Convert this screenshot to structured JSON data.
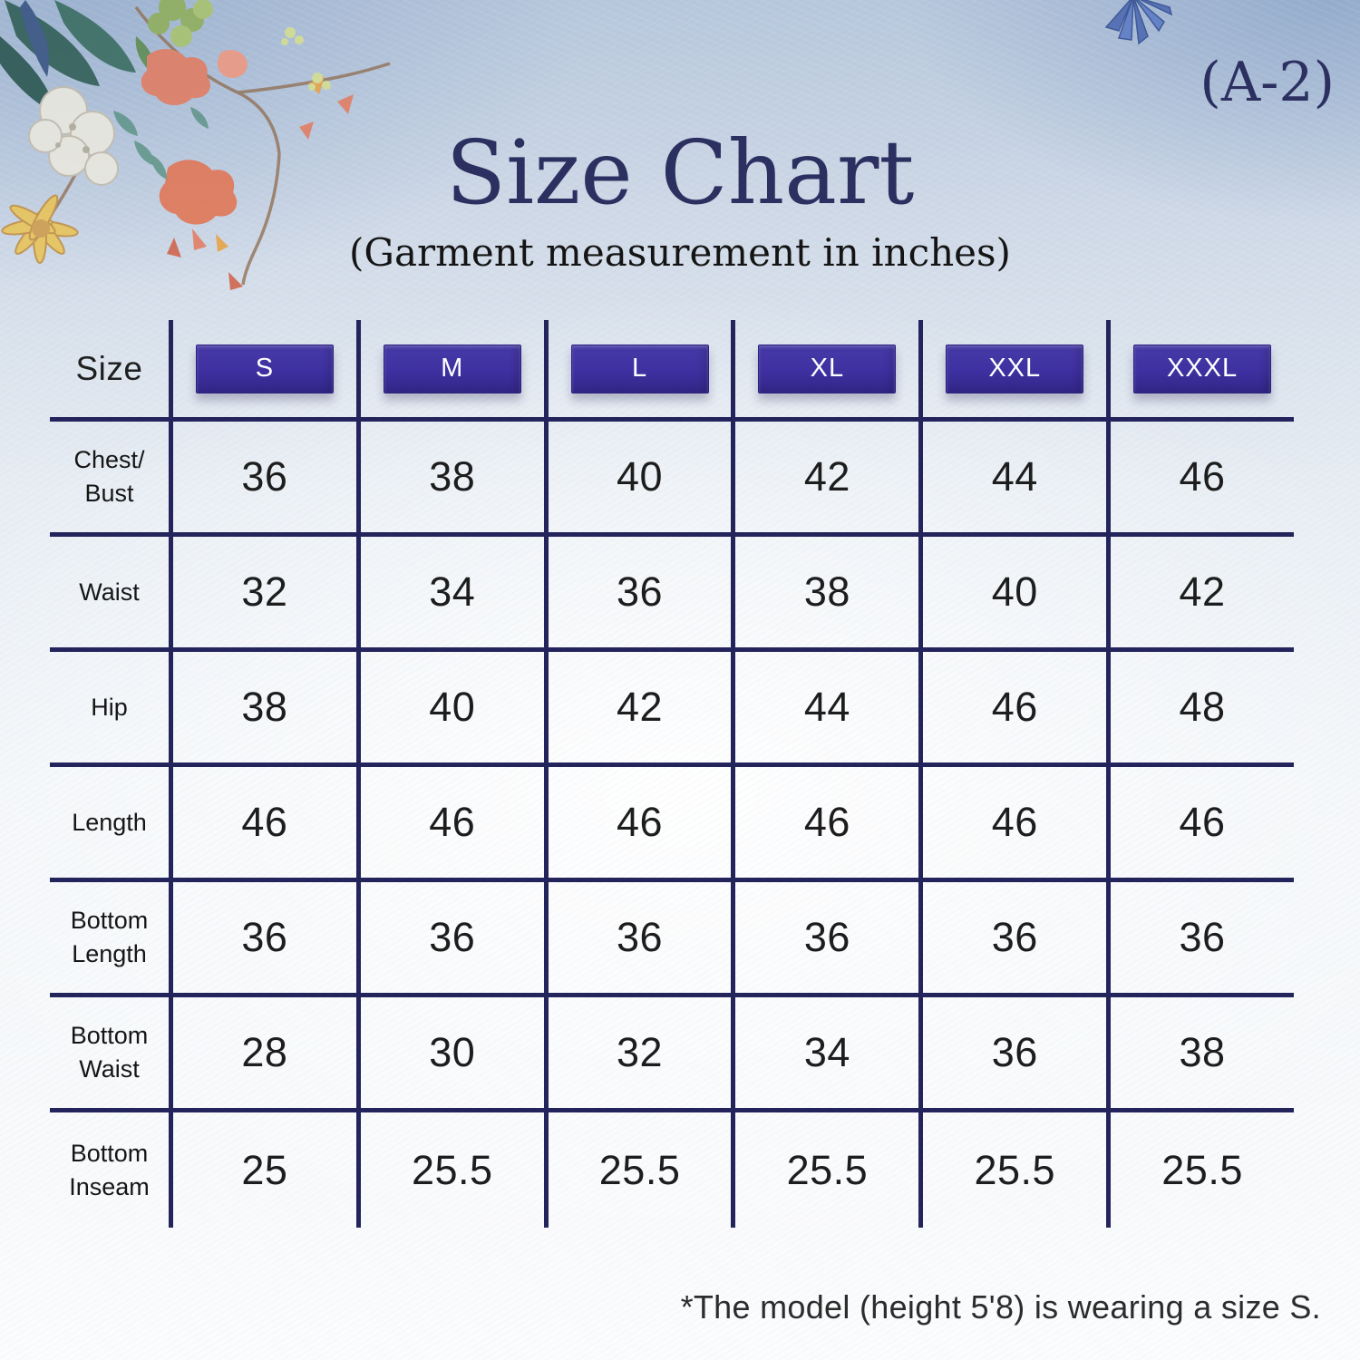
{
  "page": {
    "code_label": "(A-2)",
    "footnote": "*The model (height 5'8) is wearing a size S."
  },
  "chart_data": {
    "type": "table",
    "title": "Size Chart",
    "subtitle": "(Garment measurement in inches)",
    "units": "inches",
    "corner_label": "Size",
    "columns": [
      "S",
      "M",
      "L",
      "XL",
      "XXL",
      "XXXL"
    ],
    "rows": [
      {
        "label": "Chest/Bust",
        "label_lines": [
          "Chest/",
          "Bust"
        ],
        "values": [
          "36",
          "38",
          "40",
          "42",
          "44",
          "46"
        ]
      },
      {
        "label": "Waist",
        "label_lines": [
          "Waist"
        ],
        "values": [
          "32",
          "34",
          "36",
          "38",
          "40",
          "42"
        ]
      },
      {
        "label": "Hip",
        "label_lines": [
          "Hip"
        ],
        "values": [
          "38",
          "40",
          "42",
          "44",
          "46",
          "48"
        ]
      },
      {
        "label": "Length",
        "label_lines": [
          "Length"
        ],
        "values": [
          "46",
          "46",
          "46",
          "46",
          "46",
          "46"
        ]
      },
      {
        "label": "Bottom Length",
        "label_lines": [
          "Bottom",
          "Length"
        ],
        "values": [
          "36",
          "36",
          "36",
          "36",
          "36",
          "36"
        ]
      },
      {
        "label": "Bottom Waist",
        "label_lines": [
          "Bottom",
          "Waist"
        ],
        "values": [
          "28",
          "30",
          "32",
          "34",
          "36",
          "38"
        ]
      },
      {
        "label": "Bottom Inseam",
        "label_lines": [
          "Bottom",
          "Inseam"
        ],
        "values": [
          "25",
          "25.5",
          "25.5",
          "25.5",
          "25.5",
          "25.5"
        ]
      }
    ],
    "note": "*The model (height 5'8) is wearing a size S.",
    "legend_position": "none",
    "grid": true
  },
  "colors": {
    "grid": "#24245c",
    "badge": "#3e30a0",
    "badge_light": "#473aa8",
    "badge_dark": "#322687",
    "heading": "#2c3060"
  },
  "decorations": [
    "floral-watercolor-spray-top-left",
    "cornflower-top-right"
  ]
}
